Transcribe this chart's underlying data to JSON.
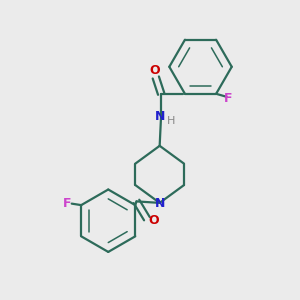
{
  "bg_color": "#ebebeb",
  "bond_color": "#2d6b5a",
  "N_color": "#2020cc",
  "O_color": "#cc0000",
  "F_color": "#cc44cc",
  "H_color": "#888888",
  "figsize": [
    3.0,
    3.0
  ],
  "dpi": 100,
  "xlim": [
    0,
    10
  ],
  "ylim": [
    0,
    10
  ]
}
